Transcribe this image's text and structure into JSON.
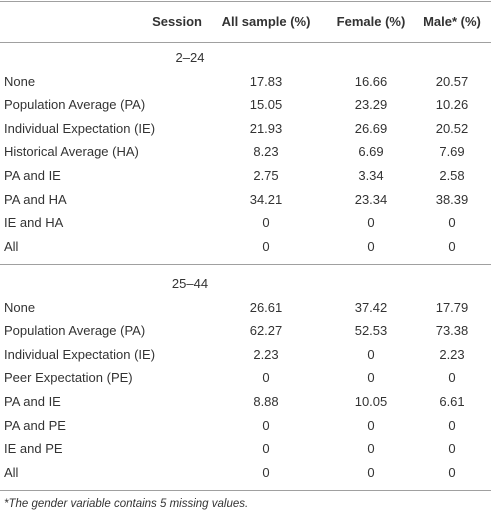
{
  "table": {
    "header": [
      "Session",
      "All sample (%)",
      "Female (%)",
      "Male* (%)"
    ],
    "sections": [
      {
        "title": "2–24",
        "rows": [
          [
            "None",
            17.83,
            16.66,
            20.57
          ],
          [
            "Population Average (PA)",
            15.05,
            23.29,
            10.26
          ],
          [
            "Individual Expectation (IE)",
            21.93,
            26.69,
            20.52
          ],
          [
            "Historical Average (HA)",
            8.23,
            6.69,
            7.69
          ],
          [
            "PA and IE",
            2.75,
            3.34,
            2.58
          ],
          [
            "PA and HA",
            34.21,
            23.34,
            38.39
          ],
          [
            "IE and HA",
            0,
            0,
            0
          ],
          [
            "All",
            0,
            0,
            0
          ]
        ]
      },
      {
        "title": "25–44",
        "rows": [
          [
            "None",
            26.61,
            37.42,
            17.79
          ],
          [
            "Population Average (PA)",
            62.27,
            52.53,
            73.38
          ],
          [
            "Individual Expectation (IE)",
            2.23,
            0,
            2.23
          ],
          [
            "Peer Expectation (PE)",
            0,
            0,
            0
          ],
          [
            "PA and IE",
            8.88,
            10.05,
            6.61
          ],
          [
            "PA and PE",
            0,
            0,
            0
          ],
          [
            "IE and PE",
            0,
            0,
            0
          ],
          [
            "All",
            0,
            0,
            0
          ]
        ]
      }
    ],
    "footnote": "*The gender variable contains 5 missing values."
  }
}
